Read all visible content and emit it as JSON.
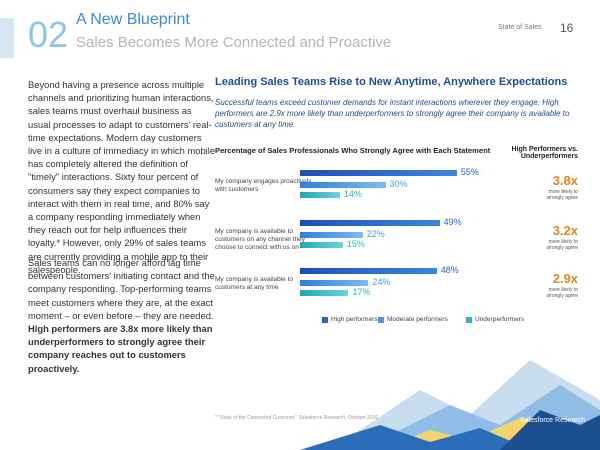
{
  "header": {
    "number": "02",
    "title": "A New Blueprint",
    "subtitle": "Sales Becomes More Connected and Proactive",
    "section": "State of Sales",
    "page": "16"
  },
  "body": {
    "p1": "Beyond having a presence across multiple channels and prioritizing human interactions, sales teams must overhaul business as usual processes to adapt to customers' real-time expectations. Modern day customers live in a culture of immediacy in which mobile has completely altered the definition of \"timely\" interactions. Sixty four percent of consumers say they expect companies to interact with them in real time, and 80% say a company responding immediately when they reach out for help influences their loyalty.* However, only 29% of sales teams are currently providing a mobile app to their salespeople.",
    "p2": "Sales teams can no longer afford lag time between customers' initiating contact and the company responding. Top-performing teams meet customers where they are, at the exact moment – or even before – they are needed.",
    "p2_bold": "High performers are 3.8x more likely than underperformers to strongly agree their company reaches out to customers proactively."
  },
  "section": {
    "heading": "Leading Sales Teams Rise to New Anytime, Anywhere Expectations",
    "intro": "Successful teams exceed customer demands for instant interactions wherever they engage. High performers are 2.9x more likely than underperformers to strongly agree their company is available to customers at any time."
  },
  "chart_data": {
    "type": "bar",
    "orientation": "horizontal",
    "title": "Percentage of Sales Professionals Who Strongly Agree with Each Statement",
    "comparison_title": "High Performers vs. Underperformers",
    "categories": [
      "My company engages proactively with customers",
      "My company is available to customers on any channel they choose to connect with us on",
      "My company is available to customers at any time"
    ],
    "series": [
      {
        "name": "High performers",
        "color": "#2467d0",
        "values": [
          55,
          49,
          48
        ],
        "value_labels": [
          "55%",
          "49%",
          "48%"
        ]
      },
      {
        "name": "Moderate performers",
        "color": "#4a9be6",
        "values": [
          30,
          22,
          24
        ],
        "value_labels": [
          "30%",
          "22%",
          "24%"
        ]
      },
      {
        "name": "Underperformers",
        "color": "#2fb7c6",
        "values": [
          14,
          15,
          17
        ],
        "value_labels": [
          "14%",
          "15%",
          "17%"
        ]
      }
    ],
    "ratio_labels": [
      "3.8x",
      "3.2x",
      "2.9x"
    ],
    "ratio_note": "more likely to strongly agree",
    "legend": "bottom"
  },
  "footer": {
    "note": "* \"State of the Connected Customer,\" Salesforce Research, October 2016",
    "brand": "Salesforce Research"
  }
}
